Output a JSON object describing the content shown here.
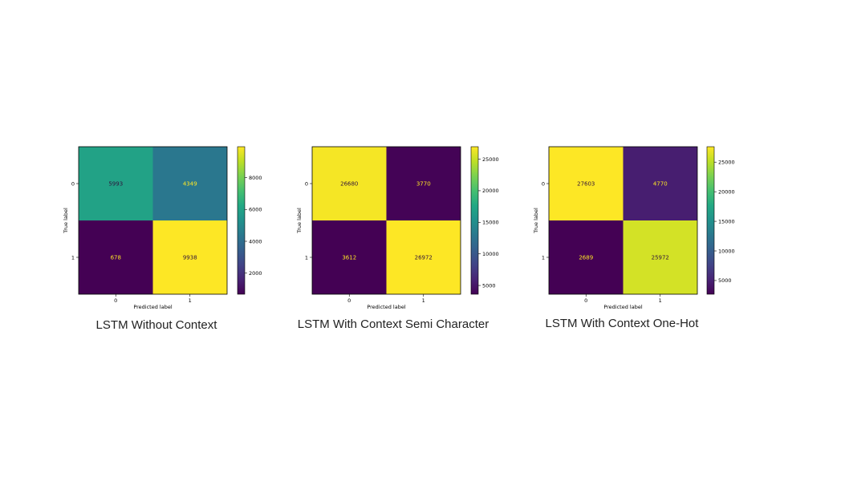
{
  "chart_data": [
    {
      "type": "heatmap",
      "title": "LSTM Without Context",
      "xlabel": "Predicted label",
      "ylabel": "True label",
      "x_categories": [
        "0",
        "1"
      ],
      "y_categories": [
        "0",
        "1"
      ],
      "values": [
        [
          5993,
          4349
        ],
        [
          678,
          9938
        ]
      ],
      "colorbar": {
        "min": 678,
        "max": 9938,
        "ticks": [
          2000,
          4000,
          6000,
          8000
        ],
        "colormap": "viridis"
      }
    },
    {
      "type": "heatmap",
      "title": "LSTM With Context Semi Character",
      "xlabel": "Predicted label",
      "ylabel": "True label",
      "x_categories": [
        "0",
        "1"
      ],
      "y_categories": [
        "0",
        "1"
      ],
      "values": [
        [
          26680,
          3770
        ],
        [
          3612,
          26972
        ]
      ],
      "colorbar": {
        "min": 3612,
        "max": 26972,
        "ticks": [
          5000,
          10000,
          15000,
          20000,
          25000
        ],
        "colormap": "viridis"
      }
    },
    {
      "type": "heatmap",
      "title": "LSTM With Context One-Hot",
      "xlabel": "Predicted label",
      "ylabel": "True label",
      "x_categories": [
        "0",
        "1"
      ],
      "y_categories": [
        "0",
        "1"
      ],
      "values": [
        [
          27603,
          4770
        ],
        [
          2689,
          25972
        ]
      ],
      "colorbar": {
        "min": 2689,
        "max": 27603,
        "ticks": [
          5000,
          10000,
          15000,
          20000,
          25000
        ],
        "colormap": "viridis"
      }
    }
  ]
}
